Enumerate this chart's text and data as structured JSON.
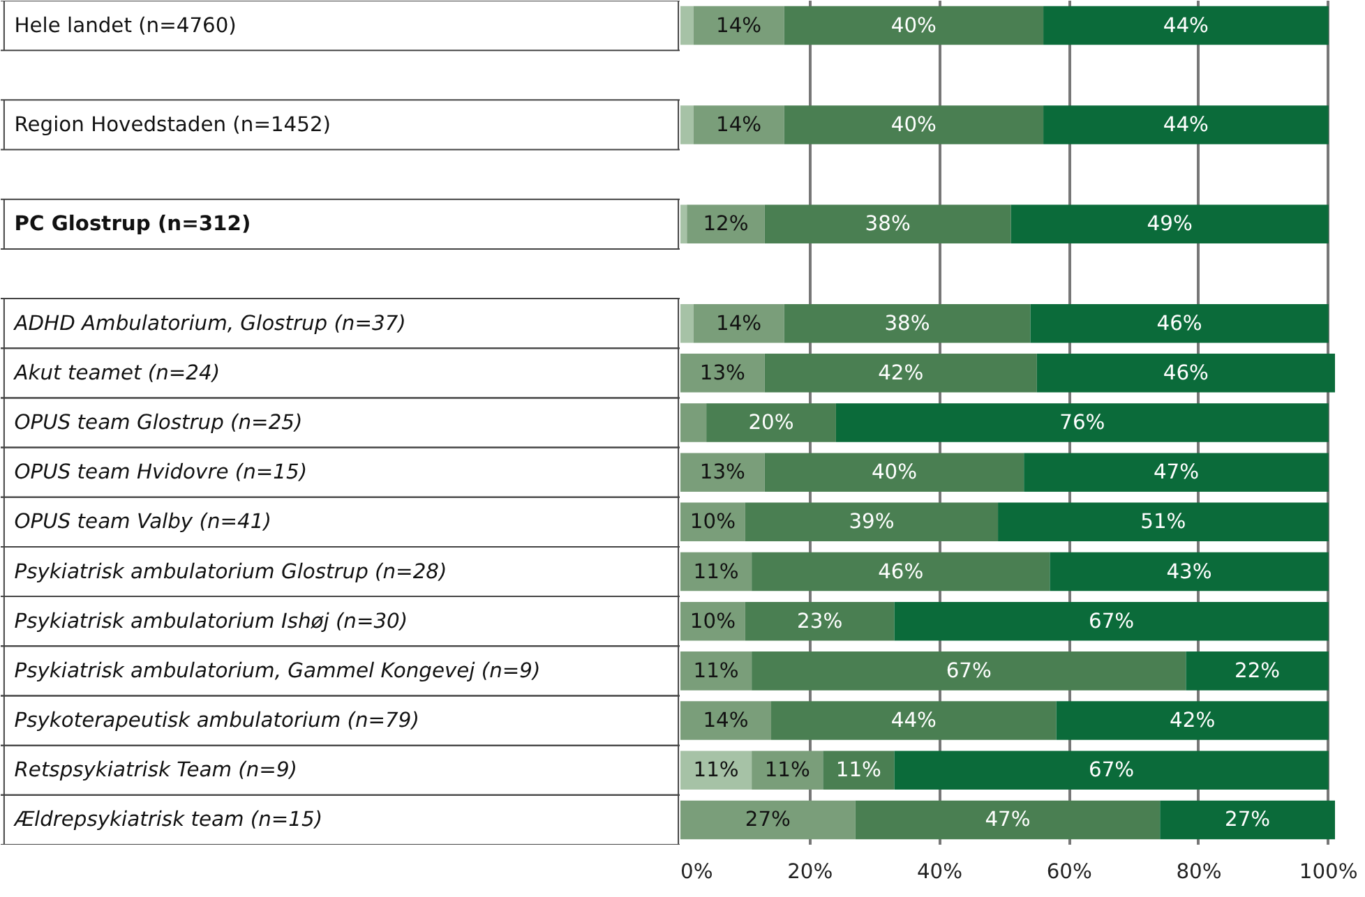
{
  "chart_data": {
    "type": "bar",
    "orientation": "horizontal",
    "stacked": true,
    "categories": [
      "Hele landet (n=4760)",
      null,
      "Region Hovedstaden (n=1452)",
      null,
      "PC Glostrup (n=312)",
      null,
      "ADHD Ambulatorium, Glostrup (n=37)",
      "Akut teamet (n=24)",
      "OPUS team Glostrup (n=25)",
      "OPUS team Hvidovre (n=15)",
      "OPUS team Valby (n=41)",
      "Psykiatrisk ambulatorium Glostrup (n=28)",
      "Psykiatrisk ambulatorium Ishøj (n=30)",
      "Psykiatrisk ambulatorium, Gammel Kongevej (n=9)",
      "Psykoterapeutisk ambulatorium (n=79)",
      "Retspsykiatrisk Team (n=9)",
      "Ældrepsykiatrisk team (n=15)"
    ],
    "series": [
      {
        "color": "#a6c2a6",
        "values": [
          2,
          null,
          2,
          null,
          1,
          null,
          2,
          null,
          null,
          null,
          null,
          null,
          null,
          null,
          null,
          11,
          null
        ],
        "value_labels": [
          null,
          null,
          null,
          null,
          null,
          null,
          null,
          null,
          null,
          null,
          null,
          null,
          null,
          null,
          null,
          "11%",
          null
        ]
      },
      {
        "color": "#7a9e7a",
        "values": [
          14,
          null,
          14,
          null,
          12,
          null,
          14,
          13,
          4,
          13,
          10,
          11,
          10,
          11,
          14,
          11,
          27
        ],
        "value_labels": [
          "14%",
          null,
          "14%",
          null,
          "12%",
          null,
          "14%",
          "13%",
          null,
          "13%",
          "10%",
          "11%",
          "10%",
          "11%",
          "14%",
          "11%",
          "27%"
        ]
      },
      {
        "color": "#4a7f52",
        "values": [
          40,
          null,
          40,
          null,
          38,
          null,
          38,
          42,
          20,
          40,
          39,
          46,
          23,
          67,
          44,
          11,
          47
        ],
        "value_labels": [
          "40%",
          null,
          "40%",
          null,
          "38%",
          null,
          "38%",
          "42%",
          "20%",
          "40%",
          "39%",
          "46%",
          "23%",
          "67%",
          "44%",
          "11%",
          "47%"
        ]
      },
      {
        "color": "#0b6b3a",
        "values": [
          44,
          null,
          44,
          null,
          49,
          null,
          46,
          46,
          76,
          47,
          51,
          43,
          67,
          22,
          42,
          67,
          27
        ],
        "value_labels": [
          "44%",
          null,
          "44%",
          null,
          "49%",
          null,
          "46%",
          "46%",
          "76%",
          "47%",
          "51%",
          "43%",
          "67%",
          "22%",
          "42%",
          "67%",
          "27%"
        ]
      }
    ],
    "xlim": [
      0,
      101
    ],
    "xticks": [
      {
        "value": 0,
        "label": "0%"
      },
      {
        "value": 20,
        "label": "20%"
      },
      {
        "value": 40,
        "label": "40%"
      },
      {
        "value": 60,
        "label": "60%"
      },
      {
        "value": 80,
        "label": "80%"
      },
      {
        "value": 100,
        "label": "100%"
      }
    ],
    "grid": "x"
  }
}
